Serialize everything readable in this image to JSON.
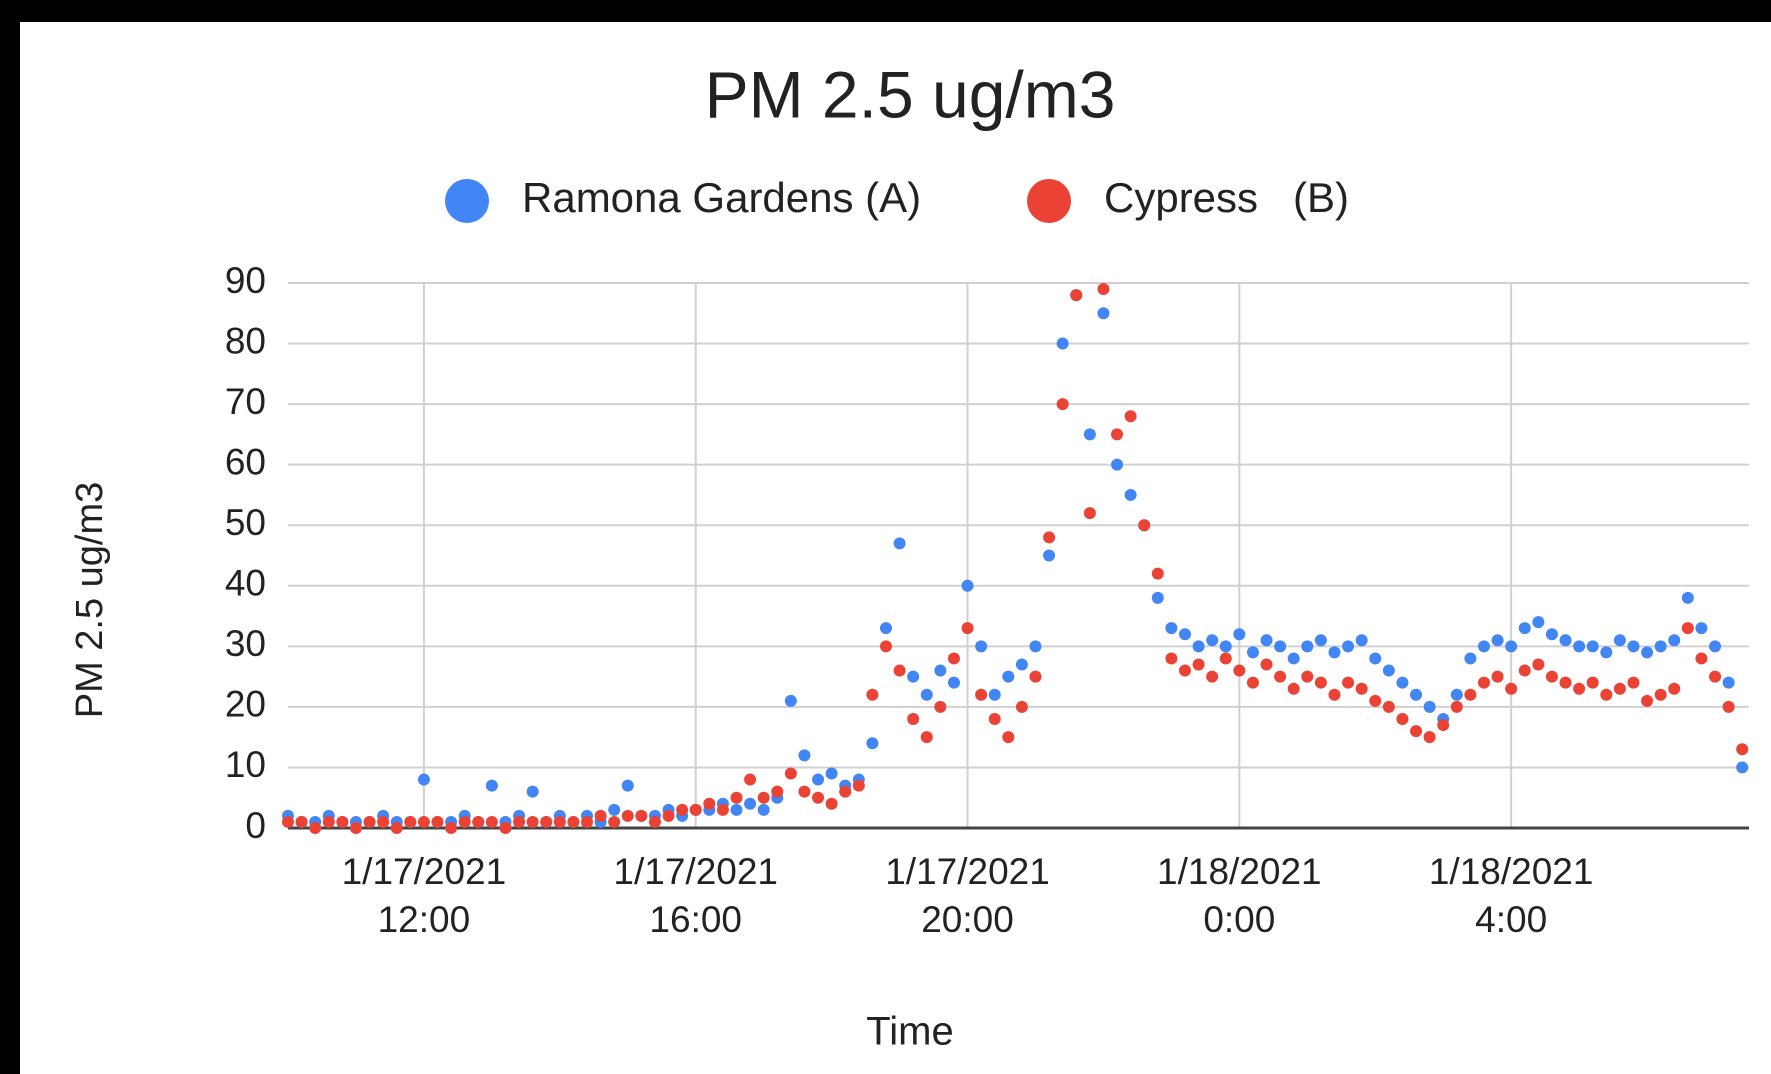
{
  "chart_data": {
    "type": "scatter",
    "title": "PM 2.5 ug/m3",
    "x_label": "Time",
    "y_label": "PM 2.5 ug/m3",
    "legend": "top",
    "grid": true,
    "xlim": [
      10,
      31.5
    ],
    "xticks": [
      {
        "value": 12,
        "label": "1/17/2021 12:00"
      },
      {
        "value": 16,
        "label": "1/17/2021 16:00"
      },
      {
        "value": 20,
        "label": "1/17/2021 20:00"
      },
      {
        "value": 24,
        "label": "1/18/2021 0:00"
      },
      {
        "value": 28,
        "label": "1/18/2021 4:00"
      }
    ],
    "ylim": [
      0,
      90
    ],
    "yticks": [
      0,
      10,
      20,
      30,
      40,
      50,
      60,
      70,
      80,
      90
    ],
    "x": [
      10.0,
      10.2,
      10.4,
      10.6,
      10.8,
      11.0,
      11.2,
      11.4,
      11.6,
      11.8,
      12.0,
      12.2,
      12.4,
      12.6,
      12.8,
      13.0,
      13.2,
      13.4,
      13.6,
      13.8,
      14.0,
      14.2,
      14.4,
      14.6,
      14.8,
      15.0,
      15.2,
      15.4,
      15.6,
      15.8,
      16.0,
      16.2,
      16.4,
      16.6,
      16.8,
      17.0,
      17.2,
      17.4,
      17.6,
      17.8,
      18.0,
      18.2,
      18.4,
      18.6,
      18.8,
      19.0,
      19.2,
      19.4,
      19.6,
      19.8,
      20.0,
      20.2,
      20.4,
      20.6,
      20.8,
      21.0,
      21.2,
      21.4,
      21.6,
      21.8,
      22.0,
      22.2,
      22.4,
      22.6,
      22.8,
      23.0,
      23.2,
      23.4,
      23.6,
      23.8,
      24.0,
      24.2,
      24.4,
      24.6,
      24.8,
      25.0,
      25.2,
      25.4,
      25.6,
      25.8,
      26.0,
      26.2,
      26.4,
      26.6,
      26.8,
      27.0,
      27.2,
      27.4,
      27.6,
      27.8,
      28.0,
      28.2,
      28.4,
      28.6,
      28.8,
      29.0,
      29.2,
      29.4,
      29.6,
      29.8,
      30.0,
      30.2,
      30.4,
      30.6,
      30.8,
      31.0,
      31.2,
      31.4
    ],
    "series": [
      {
        "name": "Ramona Gardens (A)",
        "color": "#4285f4",
        "values": [
          2,
          1,
          1,
          2,
          1,
          1,
          1,
          2,
          1,
          1,
          8,
          1,
          1,
          2,
          1,
          7,
          1,
          2,
          6,
          1,
          2,
          1,
          2,
          1,
          3,
          7,
          2,
          2,
          3,
          2,
          3,
          3,
          4,
          3,
          4,
          3,
          5,
          21,
          12,
          8,
          9,
          7,
          8,
          14,
          33,
          47,
          25,
          22,
          26,
          24,
          40,
          30,
          22,
          25,
          27,
          30,
          45,
          80,
          88,
          65,
          85,
          60,
          55,
          50,
          38,
          33,
          32,
          30,
          31,
          30,
          32,
          29,
          31,
          30,
          28,
          30,
          31,
          29,
          30,
          31,
          28,
          26,
          24,
          22,
          20,
          18,
          22,
          28,
          30,
          31,
          30,
          33,
          34,
          32,
          31,
          30,
          30,
          29,
          31,
          30,
          29,
          30,
          31,
          38,
          33,
          30,
          24,
          10
        ]
      },
      {
        "name": "Cypress   (B)",
        "color": "#ea4335",
        "values": [
          1,
          1,
          0,
          1,
          1,
          0,
          1,
          1,
          0,
          1,
          1,
          1,
          0,
          1,
          1,
          1,
          0,
          1,
          1,
          1,
          1,
          1,
          1,
          2,
          1,
          2,
          2,
          1,
          2,
          3,
          3,
          4,
          3,
          5,
          8,
          5,
          6,
          9,
          6,
          5,
          4,
          6,
          7,
          22,
          30,
          26,
          18,
          15,
          20,
          28,
          33,
          22,
          18,
          15,
          20,
          25,
          48,
          70,
          88,
          52,
          89,
          65,
          68,
          50,
          42,
          28,
          26,
          27,
          25,
          28,
          26,
          24,
          27,
          25,
          23,
          25,
          24,
          22,
          24,
          23,
          21,
          20,
          18,
          16,
          15,
          17,
          20,
          22,
          24,
          25,
          23,
          26,
          27,
          25,
          24,
          23,
          24,
          22,
          23,
          24,
          21,
          22,
          23,
          33,
          28,
          25,
          20,
          13
        ]
      }
    ]
  }
}
